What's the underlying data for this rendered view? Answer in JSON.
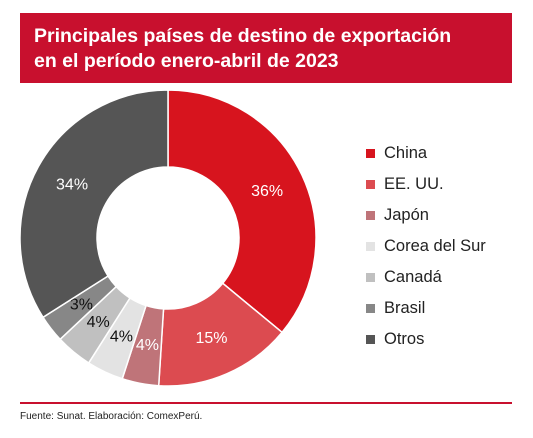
{
  "header": {
    "title": "Principales países de destino de exportación\nen el período enero-abril de 2023"
  },
  "footer": {
    "source": "Fuente: Sunat. Elaboración: ComexPerú."
  },
  "chart_data": {
    "type": "pie",
    "title": "Principales países de destino de exportación en el período enero-abril de 2023",
    "legend_position": "right",
    "slices": [
      {
        "name": "China",
        "value": 36,
        "label": "36%",
        "color": "#d7141e",
        "label_color": "#ffffff"
      },
      {
        "name": "EE. UU.",
        "value": 15,
        "label": "15%",
        "color": "#dc4b50",
        "label_color": "#ffffff"
      },
      {
        "name": "Japón",
        "value": 4,
        "label": "4%",
        "color": "#bf7479",
        "label_color": "#ffffff"
      },
      {
        "name": "Corea del Sur",
        "value": 4,
        "label": "4%",
        "color": "#e3e3e3",
        "label_color": "#111111"
      },
      {
        "name": "Canadá",
        "value": 4,
        "label": "4%",
        "color": "#c0c0c0",
        "label_color": "#111111"
      },
      {
        "name": "Brasil",
        "value": 3,
        "label": "3%",
        "color": "#878787",
        "label_color": "#111111"
      },
      {
        "name": "Otros",
        "value": 34,
        "label": "34%",
        "color": "#555555",
        "label_color": "#ffffff"
      }
    ]
  }
}
